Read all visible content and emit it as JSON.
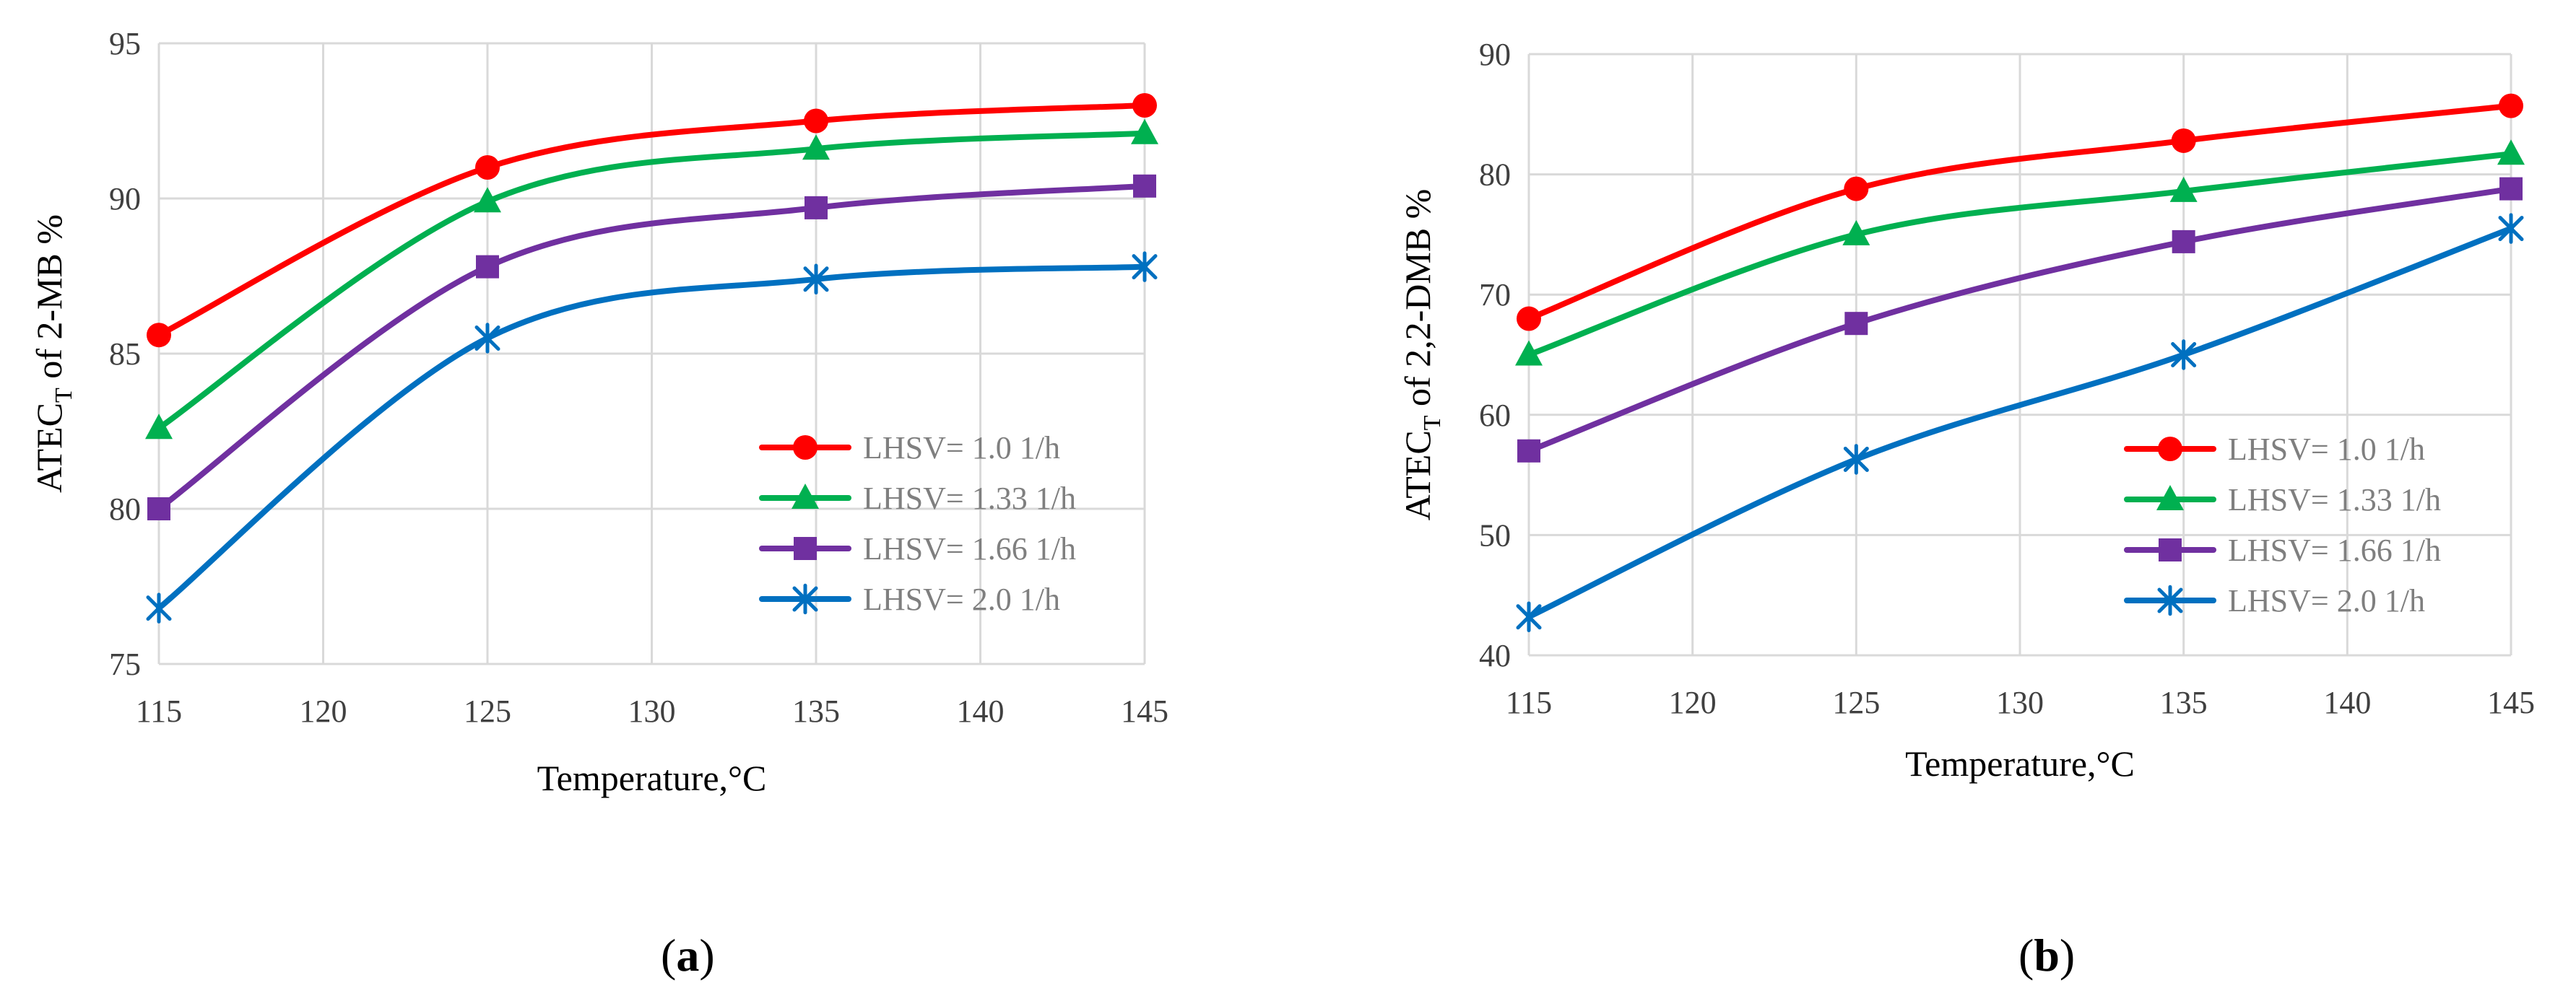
{
  "chart_data": [
    {
      "type": "line",
      "panel": "a",
      "panel_label": "a",
      "ylabel": {
        "main": "ATEC",
        "sub": "T",
        "rest": " of 2-MB %"
      },
      "xlabel": "Temperature,°C",
      "xlim": [
        115,
        145
      ],
      "ylim": [
        75,
        95
      ],
      "xticks": [
        "115",
        "120",
        "125",
        "130",
        "135",
        "140",
        "145"
      ],
      "yticks": [
        "75",
        "80",
        "85",
        "90",
        "95"
      ],
      "grid": true,
      "legend_position": "bottom-right",
      "x": [
        115,
        125,
        135,
        145
      ],
      "series": [
        {
          "name": "LHSV= 1.0 1/h",
          "color": "#ff0000",
          "marker": "circle",
          "values": [
            85.6,
            91.0,
            92.5,
            93.0
          ]
        },
        {
          "name": "LHSV= 1.33 1/h",
          "color": "#00b050",
          "marker": "triangle",
          "values": [
            82.6,
            89.9,
            91.6,
            92.1
          ]
        },
        {
          "name": "LHSV= 1.66 1/h",
          "color": "#7030a0",
          "marker": "square",
          "values": [
            80.0,
            87.8,
            89.7,
            90.4
          ]
        },
        {
          "name": "LHSV= 2.0 1/h",
          "color": "#0070c0",
          "marker": "star",
          "values": [
            76.8,
            85.5,
            87.4,
            87.8
          ]
        }
      ]
    },
    {
      "type": "line",
      "panel": "b",
      "panel_label": "b",
      "ylabel": {
        "main": "ATEC",
        "sub": "T",
        "rest": " of 2,2-DMB %"
      },
      "xlabel": "Temperature,°C",
      "xlim": [
        115,
        145
      ],
      "ylim": [
        40,
        90
      ],
      "xticks": [
        "115",
        "120",
        "125",
        "130",
        "135",
        "140",
        "145"
      ],
      "yticks": [
        "40",
        "50",
        "60",
        "70",
        "80",
        "90"
      ],
      "grid": true,
      "legend_position": "bottom-right",
      "x": [
        115,
        125,
        135,
        145
      ],
      "series": [
        {
          "name": "LHSV= 1.0 1/h",
          "color": "#ff0000",
          "marker": "circle",
          "values": [
            68.0,
            78.8,
            82.8,
            85.7
          ]
        },
        {
          "name": "LHSV= 1.33 1/h",
          "color": "#00b050",
          "marker": "triangle",
          "values": [
            65.0,
            75.0,
            78.6,
            81.7
          ]
        },
        {
          "name": "LHSV= 1.66 1/h",
          "color": "#7030a0",
          "marker": "square",
          "values": [
            57.0,
            67.6,
            74.4,
            78.8
          ]
        },
        {
          "name": "LHSV= 2.0 1/h",
          "color": "#0070c0",
          "marker": "star",
          "values": [
            43.2,
            56.3,
            65.0,
            75.5
          ]
        }
      ]
    }
  ]
}
